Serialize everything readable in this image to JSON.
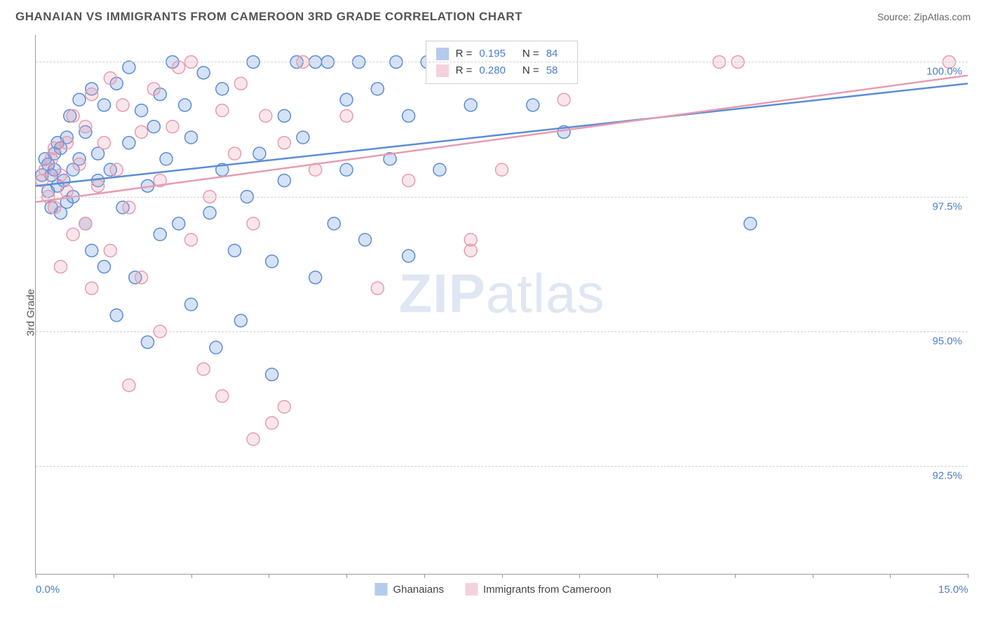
{
  "title": "GHANAIAN VS IMMIGRANTS FROM CAMEROON 3RD GRADE CORRELATION CHART",
  "source_label": "Source: ",
  "source_name": "ZipAtlas.com",
  "y_axis_label": "3rd Grade",
  "watermark_1": "ZIP",
  "watermark_2": "atlas",
  "chart": {
    "type": "scatter",
    "background_color": "#ffffff",
    "grid_color": "#d0d0d0",
    "axis_color": "#999999",
    "text_color": "#555555",
    "value_color": "#4a7ec9",
    "xlim": [
      0.0,
      15.0
    ],
    "ylim": [
      90.5,
      100.5
    ],
    "x_ticks": [
      0.0,
      1.25,
      2.5,
      3.75,
      5.0,
      6.25,
      7.5,
      8.75,
      10.0,
      11.25,
      12.5,
      13.75,
      15.0
    ],
    "x_tick_labels_visible": {
      "0.0": "0.0%",
      "15.0": "15.0%"
    },
    "y_ticks": [
      92.5,
      95.0,
      97.5,
      100.0
    ],
    "y_tick_labels": [
      "92.5%",
      "95.0%",
      "97.5%",
      "100.0%"
    ],
    "marker_radius": 9,
    "marker_stroke_width": 1.5,
    "marker_fill_opacity": 0.25,
    "trend_line_width": 2.5,
    "series": [
      {
        "name": "Ghanaians",
        "color_stroke": "#5b8dd6",
        "color_fill": "#5b8dd6",
        "R": 0.195,
        "N": 84,
        "trend": {
          "x1": 0.0,
          "y1": 97.7,
          "x2": 15.0,
          "y2": 99.6
        },
        "points": [
          [
            0.1,
            97.9
          ],
          [
            0.15,
            98.2
          ],
          [
            0.2,
            97.6
          ],
          [
            0.2,
            98.1
          ],
          [
            0.25,
            97.3
          ],
          [
            0.25,
            97.9
          ],
          [
            0.3,
            98.0
          ],
          [
            0.3,
            98.3
          ],
          [
            0.35,
            97.7
          ],
          [
            0.35,
            98.5
          ],
          [
            0.4,
            97.2
          ],
          [
            0.4,
            98.4
          ],
          [
            0.45,
            97.8
          ],
          [
            0.5,
            98.6
          ],
          [
            0.5,
            97.4
          ],
          [
            0.55,
            99.0
          ],
          [
            0.6,
            98.0
          ],
          [
            0.6,
            97.5
          ],
          [
            0.7,
            99.3
          ],
          [
            0.7,
            98.2
          ],
          [
            0.8,
            97.0
          ],
          [
            0.8,
            98.7
          ],
          [
            0.9,
            99.5
          ],
          [
            0.9,
            96.5
          ],
          [
            1.0,
            98.3
          ],
          [
            1.0,
            97.8
          ],
          [
            1.1,
            99.2
          ],
          [
            1.1,
            96.2
          ],
          [
            1.2,
            98.0
          ],
          [
            1.3,
            99.6
          ],
          [
            1.3,
            95.3
          ],
          [
            1.4,
            97.3
          ],
          [
            1.5,
            99.9
          ],
          [
            1.5,
            98.5
          ],
          [
            1.6,
            96.0
          ],
          [
            1.7,
            99.1
          ],
          [
            1.8,
            97.7
          ],
          [
            1.8,
            94.8
          ],
          [
            1.9,
            98.8
          ],
          [
            2.0,
            99.4
          ],
          [
            2.0,
            96.8
          ],
          [
            2.1,
            98.2
          ],
          [
            2.2,
            100.0
          ],
          [
            2.3,
            97.0
          ],
          [
            2.4,
            99.2
          ],
          [
            2.5,
            95.5
          ],
          [
            2.5,
            98.6
          ],
          [
            2.7,
            99.8
          ],
          [
            2.8,
            97.2
          ],
          [
            2.9,
            94.7
          ],
          [
            3.0,
            98.0
          ],
          [
            3.0,
            99.5
          ],
          [
            3.2,
            96.5
          ],
          [
            3.3,
            95.2
          ],
          [
            3.4,
            97.5
          ],
          [
            3.5,
            100.0
          ],
          [
            3.6,
            98.3
          ],
          [
            3.8,
            96.3
          ],
          [
            3.8,
            94.2
          ],
          [
            4.0,
            99.0
          ],
          [
            4.0,
            97.8
          ],
          [
            4.2,
            100.0
          ],
          [
            4.3,
            98.6
          ],
          [
            4.5,
            100.0
          ],
          [
            4.5,
            96.0
          ],
          [
            4.7,
            100.0
          ],
          [
            4.8,
            97.0
          ],
          [
            5.0,
            99.3
          ],
          [
            5.0,
            98.0
          ],
          [
            5.2,
            100.0
          ],
          [
            5.3,
            96.7
          ],
          [
            5.5,
            99.5
          ],
          [
            5.7,
            98.2
          ],
          [
            5.8,
            100.0
          ],
          [
            6.0,
            96.4
          ],
          [
            6.0,
            99.0
          ],
          [
            6.3,
            100.0
          ],
          [
            6.5,
            98.0
          ],
          [
            6.8,
            100.0
          ],
          [
            7.0,
            99.2
          ],
          [
            7.5,
            100.0
          ],
          [
            8.0,
            99.2
          ],
          [
            8.5,
            98.7
          ],
          [
            11.5,
            97.0
          ]
        ]
      },
      {
        "name": "Immigrants from Cameroon",
        "color_stroke": "#e89cb0",
        "color_fill": "#e89cb0",
        "R": 0.28,
        "N": 58,
        "trend": {
          "x1": 0.0,
          "y1": 97.4,
          "x2": 15.0,
          "y2": 99.75
        },
        "points": [
          [
            0.1,
            97.8
          ],
          [
            0.15,
            98.0
          ],
          [
            0.2,
            97.5
          ],
          [
            0.25,
            98.2
          ],
          [
            0.3,
            97.3
          ],
          [
            0.3,
            98.4
          ],
          [
            0.4,
            97.9
          ],
          [
            0.4,
            96.2
          ],
          [
            0.5,
            98.5
          ],
          [
            0.5,
            97.6
          ],
          [
            0.6,
            99.0
          ],
          [
            0.6,
            96.8
          ],
          [
            0.7,
            98.1
          ],
          [
            0.8,
            97.0
          ],
          [
            0.8,
            98.8
          ],
          [
            0.9,
            99.4
          ],
          [
            0.9,
            95.8
          ],
          [
            1.0,
            97.7
          ],
          [
            1.1,
            98.5
          ],
          [
            1.2,
            99.7
          ],
          [
            1.2,
            96.5
          ],
          [
            1.3,
            98.0
          ],
          [
            1.4,
            99.2
          ],
          [
            1.5,
            94.0
          ],
          [
            1.5,
            97.3
          ],
          [
            1.7,
            98.7
          ],
          [
            1.7,
            96.0
          ],
          [
            1.9,
            99.5
          ],
          [
            2.0,
            95.0
          ],
          [
            2.0,
            97.8
          ],
          [
            2.2,
            98.8
          ],
          [
            2.3,
            99.9
          ],
          [
            2.5,
            96.7
          ],
          [
            2.5,
            100.0
          ],
          [
            2.7,
            94.3
          ],
          [
            2.8,
            97.5
          ],
          [
            3.0,
            99.1
          ],
          [
            3.0,
            93.8
          ],
          [
            3.2,
            98.3
          ],
          [
            3.3,
            99.6
          ],
          [
            3.5,
            93.0
          ],
          [
            3.5,
            97.0
          ],
          [
            3.7,
            99.0
          ],
          [
            3.8,
            93.3
          ],
          [
            4.0,
            98.5
          ],
          [
            4.0,
            93.6
          ],
          [
            4.3,
            100.0
          ],
          [
            4.5,
            98.0
          ],
          [
            5.0,
            99.0
          ],
          [
            5.5,
            95.8
          ],
          [
            6.0,
            97.8
          ],
          [
            7.0,
            96.7
          ],
          [
            7.5,
            98.0
          ],
          [
            8.5,
            99.3
          ],
          [
            11.0,
            100.0
          ],
          [
            11.3,
            100.0
          ],
          [
            14.7,
            100.0
          ],
          [
            7.0,
            96.5
          ]
        ]
      }
    ]
  },
  "stat_legend": {
    "r_label": "R =",
    "n_label": "N ="
  },
  "bottom_legend": {
    "items": [
      "Ghanaians",
      "Immigrants from Cameroon"
    ]
  }
}
